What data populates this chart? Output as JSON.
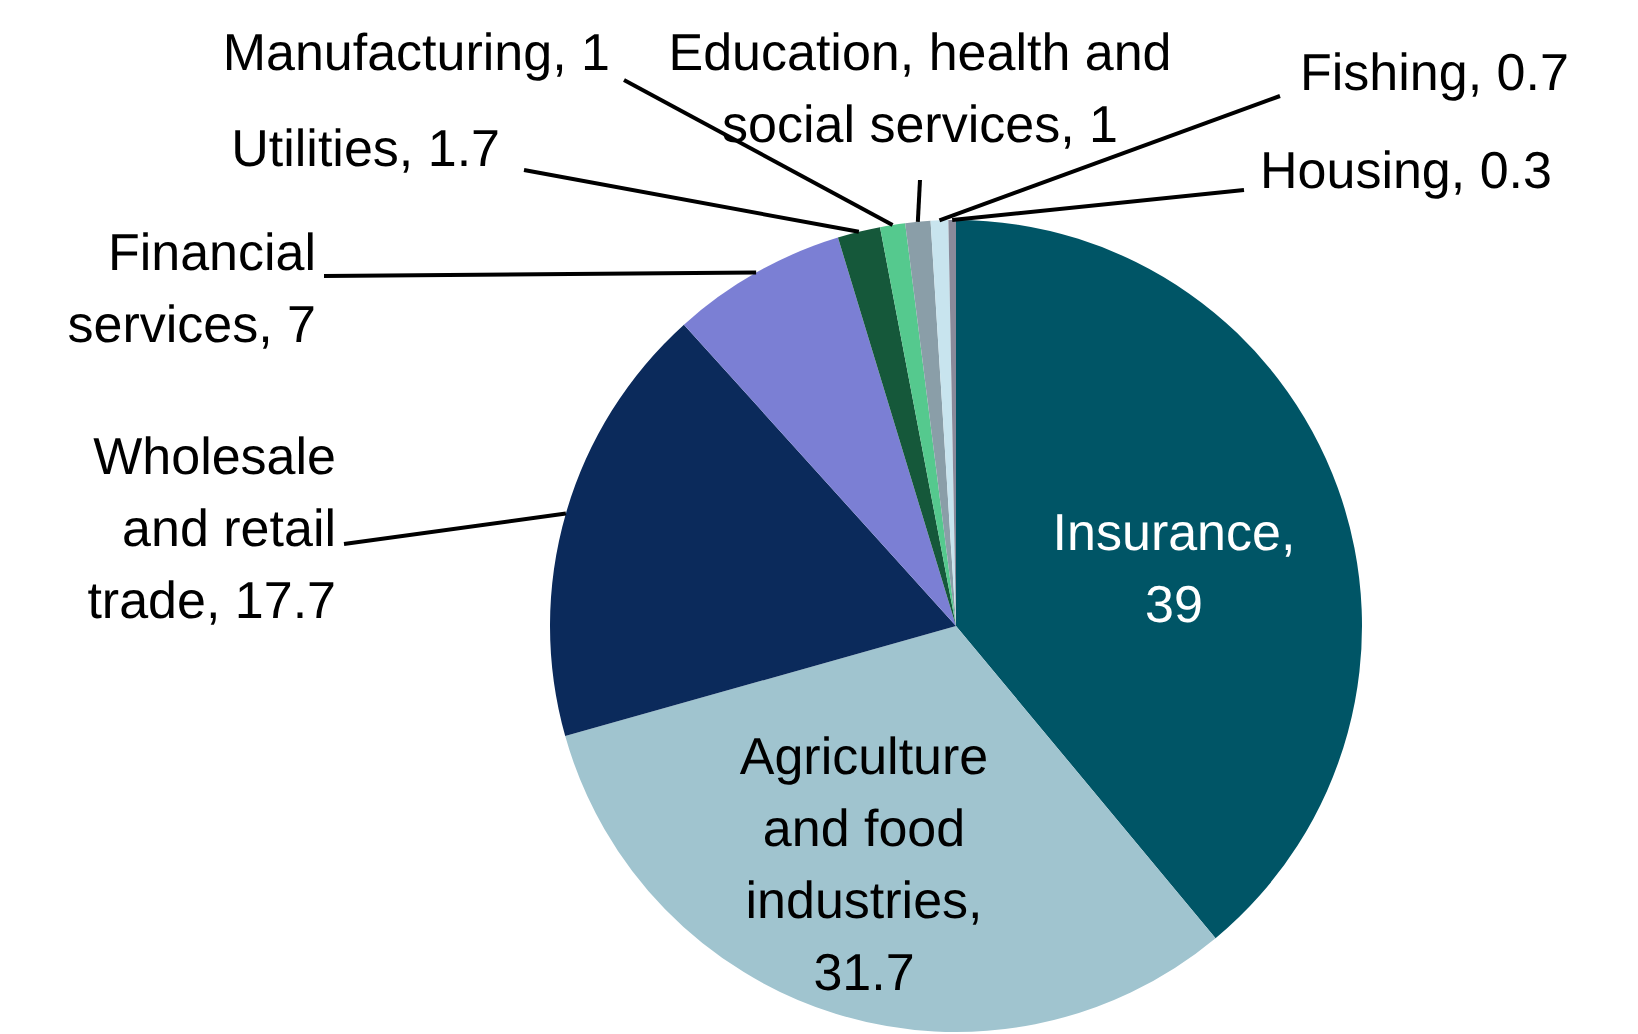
{
  "chart_data": {
    "type": "pie",
    "categories": [
      "Insurance",
      "Agriculture and food industries",
      "Wholesale and retail trade",
      "Financial services",
      "Utilities",
      "Manufacturing",
      "Education, health and social services",
      "Fishing",
      "Housing"
    ],
    "values": [
      39,
      31.7,
      17.7,
      7,
      1.7,
      1,
      1,
      0.7,
      0.3
    ],
    "value_labels": [
      ", 39",
      ", 31.7",
      ", 17.7",
      ", 7",
      ", 1.7",
      ", 1",
      ", 1",
      ", 0.7",
      ", 0.3"
    ],
    "colors": [
      "#005566",
      "#a0c4cf",
      "#0b2a5b",
      "#7b7fd4",
      "#15583a",
      "#55c98e",
      "#8a9ea8",
      "#c8e4ee",
      "#8a8a9a"
    ],
    "data_labels": true,
    "legend": false
  }
}
